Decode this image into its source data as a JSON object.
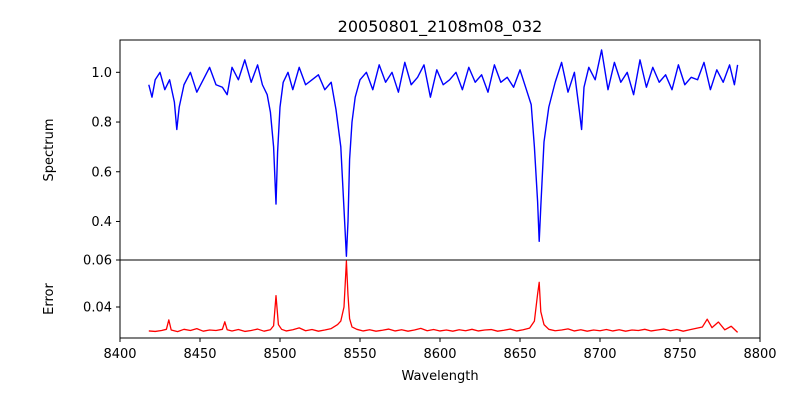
{
  "chart_data": {
    "type": "line",
    "title": "20050801_2108m08_032",
    "xlabel": "Wavelength",
    "xlim": [
      8400,
      8800
    ],
    "xticks": [
      "8400",
      "8450",
      "8500",
      "8550",
      "8600",
      "8650",
      "8700",
      "8750",
      "8800"
    ],
    "grid": false,
    "panels": [
      {
        "name": "spectrum",
        "ylabel": "Spectrum",
        "ylim": [
          0.245,
          1.13
        ],
        "yticks": [
          "0.4",
          "0.6",
          "0.8",
          "1.0"
        ],
        "series": [
          {
            "color": "#0000ff",
            "x": [
              8418,
              8420,
              8422,
              8425,
              8428,
              8431,
              8434,
              8435.5,
              8437,
              8440,
              8444,
              8448,
              8452,
              8456,
              8460,
              8464,
              8467,
              8470,
              8474,
              8478,
              8482,
              8486,
              8489,
              8492,
              8494,
              8496,
              8497.5,
              8498.5,
              8500,
              8502,
              8505,
              8508,
              8512,
              8516,
              8520,
              8524,
              8528,
              8532,
              8535,
              8538,
              8540,
              8541.5,
              8542.5,
              8543.5,
              8545,
              8547,
              8550,
              8554,
              8558,
              8562,
              8566,
              8570,
              8574,
              8578,
              8582,
              8586,
              8590,
              8594,
              8598,
              8602,
              8606,
              8610,
              8614,
              8618,
              8622,
              8626,
              8630,
              8634,
              8638,
              8642,
              8646,
              8650,
              8654,
              8657,
              8659,
              8661,
              8662,
              8663,
              8665,
              8668,
              8672,
              8676,
              8680,
              8684,
              8687,
              8688.5,
              8690,
              8693,
              8697,
              8701,
              8705,
              8709,
              8713,
              8717,
              8721,
              8725,
              8729,
              8733,
              8737,
              8741,
              8745,
              8749,
              8753,
              8757,
              8761,
              8765,
              8769,
              8773,
              8777,
              8781,
              8784,
              8786
            ],
            "y": [
              0.95,
              0.9,
              0.97,
              1.0,
              0.93,
              0.97,
              0.88,
              0.77,
              0.86,
              0.95,
              1.0,
              0.92,
              0.97,
              1.02,
              0.95,
              0.94,
              0.91,
              1.02,
              0.97,
              1.05,
              0.96,
              1.03,
              0.95,
              0.91,
              0.84,
              0.7,
              0.47,
              0.68,
              0.86,
              0.96,
              1.0,
              0.93,
              1.02,
              0.95,
              0.97,
              0.99,
              0.93,
              0.96,
              0.85,
              0.7,
              0.45,
              0.26,
              0.4,
              0.65,
              0.8,
              0.9,
              0.97,
              1.0,
              0.93,
              1.03,
              0.96,
              1.0,
              0.92,
              1.04,
              0.95,
              0.98,
              1.03,
              0.9,
              1.01,
              0.95,
              0.97,
              1.0,
              0.93,
              1.02,
              0.96,
              0.99,
              0.92,
              1.03,
              0.96,
              0.98,
              0.94,
              1.01,
              0.93,
              0.87,
              0.7,
              0.48,
              0.32,
              0.46,
              0.72,
              0.86,
              0.96,
              1.04,
              0.92,
              1.0,
              0.85,
              0.77,
              0.94,
              1.02,
              0.97,
              1.09,
              0.93,
              1.04,
              0.96,
              1.0,
              0.91,
              1.05,
              0.94,
              1.02,
              0.96,
              0.99,
              0.93,
              1.03,
              0.95,
              0.98,
              0.97,
              1.04,
              0.93,
              1.01,
              0.96,
              1.03,
              0.95,
              1.03
            ]
          }
        ]
      },
      {
        "name": "error",
        "ylabel": "Error",
        "ylim": [
          0.0268,
          0.06
        ],
        "yticks": [
          "0.04",
          "0.06"
        ],
        "series": [
          {
            "color": "#ff0000",
            "x": [
              8418,
              8422,
              8426,
              8429,
              8430.5,
              8432,
              8436,
              8440,
              8444,
              8448,
              8452,
              8456,
              8460,
              8464,
              8465.5,
              8467,
              8470,
              8474,
              8478,
              8482,
              8486,
              8490,
              8494,
              8496,
              8497.5,
              8499,
              8501,
              8504,
              8508,
              8512,
              8516,
              8520,
              8524,
              8528,
              8532,
              8536,
              8538,
              8540,
              8541.5,
              8542.5,
              8543.5,
              8545,
              8548,
              8552,
              8556,
              8560,
              8564,
              8568,
              8572,
              8576,
              8580,
              8584,
              8588,
              8592,
              8596,
              8600,
              8604,
              8608,
              8612,
              8616,
              8620,
              8624,
              8628,
              8632,
              8636,
              8640,
              8644,
              8648,
              8652,
              8656,
              8659,
              8661,
              8662,
              8663,
              8665,
              8668,
              8672,
              8676,
              8680,
              8684,
              8688,
              8692,
              8696,
              8700,
              8704,
              8708,
              8712,
              8716,
              8720,
              8724,
              8728,
              8732,
              8736,
              8740,
              8744,
              8748,
              8752,
              8756,
              8760,
              8764,
              8767,
              8770,
              8774,
              8778,
              8782,
              8786
            ],
            "y": [
              0.0298,
              0.0296,
              0.03,
              0.0305,
              0.0345,
              0.0302,
              0.0295,
              0.0305,
              0.03,
              0.0308,
              0.0297,
              0.0302,
              0.03,
              0.0305,
              0.0337,
              0.0303,
              0.0298,
              0.0304,
              0.0296,
              0.03,
              0.0306,
              0.0297,
              0.0303,
              0.032,
              0.0448,
              0.0325,
              0.0305,
              0.0298,
              0.0303,
              0.0311,
              0.0299,
              0.0304,
              0.0297,
              0.0302,
              0.0308,
              0.0325,
              0.034,
              0.04,
              0.0595,
              0.045,
              0.035,
              0.0315,
              0.0305,
              0.0298,
              0.0303,
              0.0297,
              0.0301,
              0.0306,
              0.0298,
              0.0303,
              0.0297,
              0.0302,
              0.0309,
              0.0299,
              0.0304,
              0.0298,
              0.0302,
              0.0297,
              0.0303,
              0.0299,
              0.0305,
              0.0298,
              0.0302,
              0.0304,
              0.0297,
              0.0301,
              0.0306,
              0.0298,
              0.0303,
              0.031,
              0.034,
              0.0455,
              0.0505,
              0.038,
              0.0325,
              0.0305,
              0.0299,
              0.0302,
              0.0307,
              0.0298,
              0.0303,
              0.0297,
              0.0302,
              0.0299,
              0.0304,
              0.0298,
              0.0303,
              0.0297,
              0.0302,
              0.03,
              0.0305,
              0.0298,
              0.0302,
              0.0306,
              0.0299,
              0.0304,
              0.0297,
              0.0303,
              0.0309,
              0.0315,
              0.0348,
              0.0312,
              0.0336,
              0.0303,
              0.0318,
              0.0292
            ]
          }
        ]
      }
    ]
  }
}
